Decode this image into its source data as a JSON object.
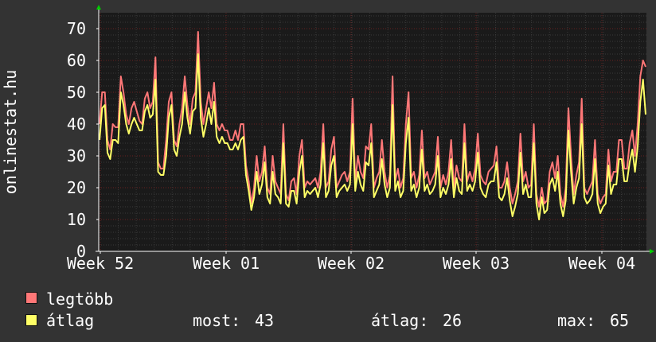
{
  "chart_data": {
    "type": "line",
    "ylabel": "onlinestat.hu",
    "ylim": [
      0,
      75
    ],
    "yticks": [
      0,
      10,
      20,
      30,
      40,
      50,
      60,
      70
    ],
    "x_tick_labels": [
      "Week 52",
      "Week 01",
      "Week 02",
      "Week 03",
      "Week 04"
    ],
    "grid": true,
    "colors": {
      "background": "#333333",
      "plot_background": "#1a1a1a",
      "grid_minor": "#3a3a3a",
      "grid_major": "#6a2020",
      "axis_text": "#ffffff",
      "legtobb": "#ff7777",
      "atlag": "#ffff66"
    },
    "series": [
      {
        "name": "legtöbb",
        "color": "#ff7777",
        "values": [
          40,
          50,
          50,
          35,
          32,
          40,
          39,
          39,
          55,
          50,
          43,
          40,
          45,
          47,
          44,
          41,
          40,
          48,
          50,
          45,
          47,
          61,
          28,
          26,
          26,
          35,
          47,
          50,
          35,
          33,
          40,
          45,
          55,
          46,
          40,
          48,
          50,
          69,
          47,
          40,
          45,
          50,
          45,
          53,
          40,
          38,
          40,
          38,
          38,
          35,
          35,
          38,
          35,
          40,
          40,
          27,
          22,
          15,
          20,
          30,
          22,
          25,
          33,
          20,
          18,
          30,
          22,
          20,
          18,
          40,
          18,
          16,
          22,
          23,
          18,
          30,
          35,
          20,
          22,
          21,
          22,
          23,
          20,
          25,
          40,
          20,
          22,
          32,
          36,
          20,
          22,
          24,
          25,
          22,
          25,
          48,
          22,
          30,
          25,
          23,
          33,
          32,
          40,
          20,
          23,
          25,
          35,
          25,
          20,
          24,
          55,
          22,
          26,
          20,
          23,
          40,
          50,
          23,
          25,
          20,
          24,
          38,
          23,
          25,
          21,
          23,
          25,
          36,
          20,
          24,
          21,
          25,
          35,
          20,
          27,
          23,
          22,
          40,
          22,
          25,
          22,
          26,
          37,
          24,
          22,
          21,
          25,
          26,
          27,
          33,
          20,
          20,
          22,
          28,
          20,
          15,
          18,
          22,
          37,
          22,
          25,
          20,
          21,
          40,
          18,
          14,
          20,
          15,
          16,
          25,
          28,
          23,
          30,
          18,
          14,
          20,
          45,
          30,
          18,
          24,
          28,
          48,
          20,
          18,
          20,
          22,
          35,
          18,
          15,
          17,
          18,
          32,
          22,
          25,
          25,
          35,
          35,
          26,
          26,
          34,
          38,
          30,
          40,
          55,
          60,
          58
        ]
      },
      {
        "name": "átlag",
        "color": "#ffff66",
        "values": [
          35,
          45,
          46,
          31,
          29,
          35,
          35,
          34,
          50,
          46,
          40,
          37,
          40,
          42,
          40,
          38,
          38,
          44,
          46,
          42,
          43,
          54,
          25,
          24,
          24,
          30,
          42,
          46,
          32,
          30,
          36,
          40,
          50,
          42,
          37,
          44,
          45,
          62,
          42,
          36,
          40,
          45,
          40,
          47,
          36,
          34,
          36,
          34,
          34,
          32,
          32,
          34,
          32,
          35,
          36,
          24,
          19,
          13,
          17,
          25,
          18,
          21,
          28,
          17,
          15,
          25,
          18,
          17,
          15,
          34,
          15,
          14,
          19,
          19,
          15,
          25,
          30,
          17,
          19,
          18,
          19,
          20,
          17,
          21,
          34,
          17,
          19,
          27,
          30,
          17,
          19,
          20,
          21,
          19,
          21,
          40,
          19,
          25,
          21,
          19,
          28,
          27,
          34,
          17,
          19,
          21,
          29,
          21,
          17,
          20,
          46,
          19,
          22,
          17,
          19,
          34,
          42,
          19,
          21,
          17,
          20,
          32,
          19,
          21,
          18,
          19,
          21,
          30,
          17,
          20,
          18,
          21,
          29,
          17,
          23,
          19,
          18,
          34,
          19,
          21,
          19,
          22,
          31,
          20,
          18,
          17,
          21,
          22,
          22,
          28,
          17,
          16,
          18,
          23,
          16,
          11,
          14,
          18,
          31,
          18,
          21,
          17,
          17,
          34,
          15,
          10,
          17,
          12,
          13,
          21,
          23,
          19,
          25,
          15,
          11,
          16,
          38,
          25,
          15,
          20,
          23,
          40,
          17,
          15,
          16,
          18,
          29,
          15,
          12,
          14,
          15,
          27,
          18,
          21,
          21,
          29,
          29,
          22,
          22,
          28,
          32,
          25,
          33,
          47,
          54,
          43
        ]
      }
    ]
  },
  "legend": [
    {
      "name": "legtöbb",
      "color": "#ff7777"
    },
    {
      "name": "átlag",
      "color": "#ffff66"
    }
  ],
  "stats": {
    "most_label": "most:",
    "most_value": "43",
    "atlag_label": "átlag:",
    "atlag_value": "26",
    "max_label": "max:",
    "max_value": "65"
  }
}
